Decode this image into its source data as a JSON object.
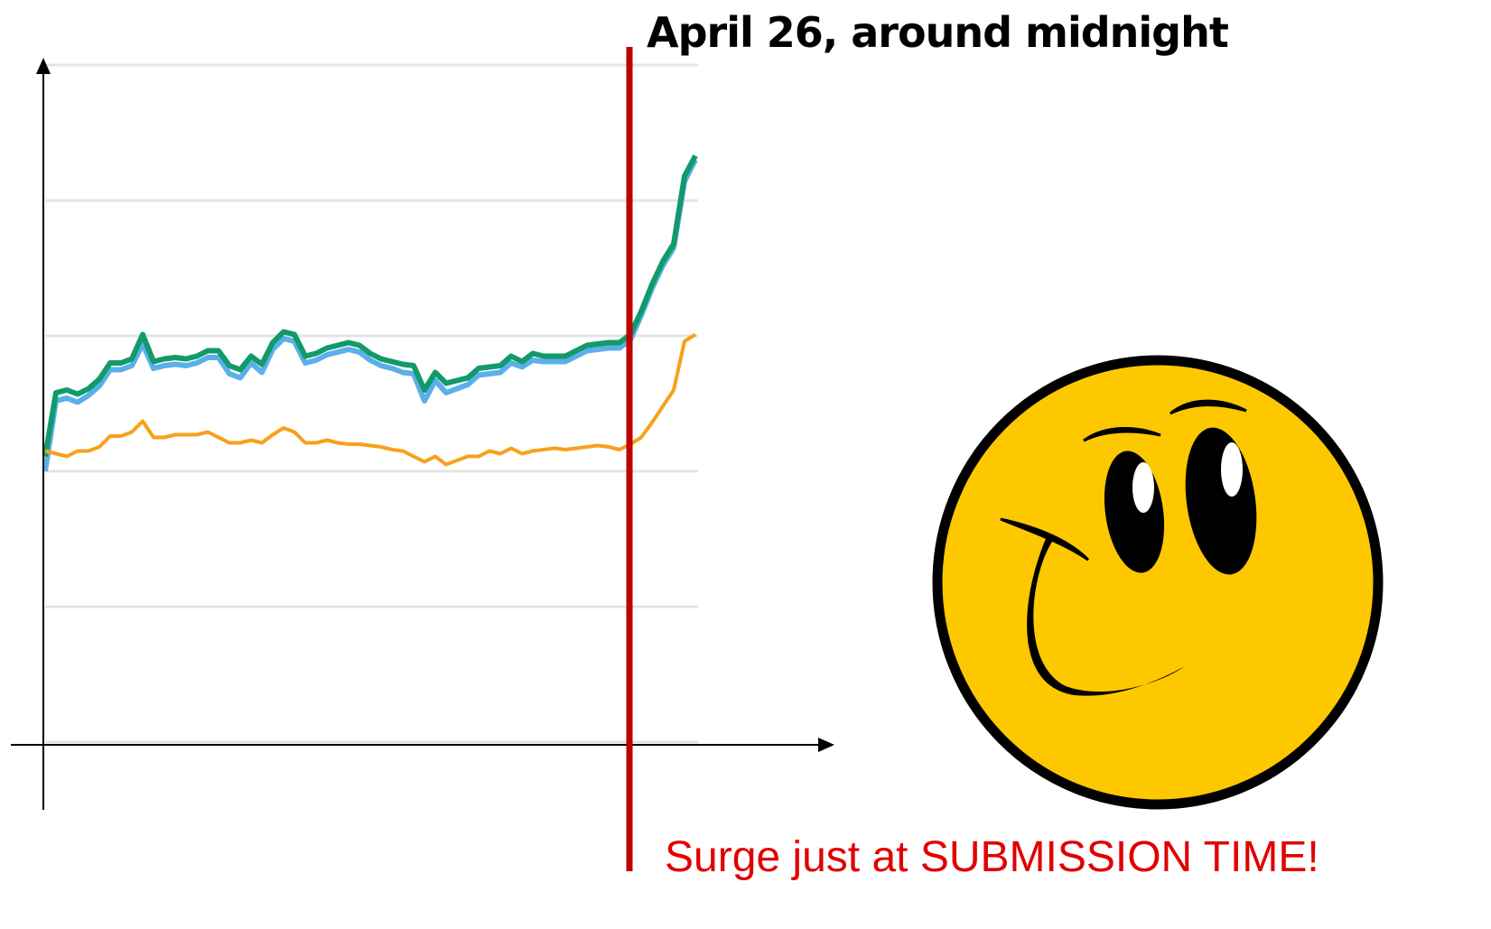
{
  "chart_data": {
    "type": "line",
    "annotations": [
      "April 26, around midnight",
      "Surge just at SUBMISSION TIME!"
    ],
    "categories": [
      null,
      null,
      null,
      null,
      null,
      null,
      null,
      null,
      null,
      null,
      null,
      null,
      null,
      null,
      null,
      null,
      null,
      null,
      null,
      null,
      null,
      null,
      null,
      null,
      null,
      null,
      null,
      null,
      null,
      null,
      null,
      null,
      null,
      null,
      null,
      null,
      null,
      null,
      null,
      null,
      null,
      null,
      null,
      null,
      null,
      null,
      null,
      null,
      null,
      null,
      null,
      null,
      null,
      null,
      null,
      null,
      null,
      null,
      null,
      null,
      null
    ],
    "series": [
      {
        "color": "#5ab0e8",
        "values": [
          2.0,
          2.52,
          2.54,
          2.51,
          2.56,
          2.63,
          2.75,
          2.75,
          2.78,
          2.94,
          2.76,
          2.78,
          2.79,
          2.78,
          2.8,
          2.84,
          2.84,
          2.72,
          2.69,
          2.8,
          2.73,
          2.9,
          2.98,
          2.96,
          2.8,
          2.82,
          2.86,
          2.88,
          2.9,
          2.88,
          2.82,
          2.78,
          2.76,
          2.73,
          2.72,
          2.52,
          2.67,
          2.58,
          2.61,
          2.64,
          2.71,
          2.72,
          2.73,
          2.8,
          2.77,
          2.82,
          2.81,
          2.81,
          2.81,
          2.85,
          2.89,
          2.9,
          2.91,
          2.91,
          2.97,
          3.15,
          3.35,
          3.52,
          3.65,
          4.14,
          4.3
        ]
      },
      {
        "color": "#119a6a",
        "values": [
          2.11,
          2.58,
          2.6,
          2.57,
          2.61,
          2.68,
          2.8,
          2.8,
          2.83,
          3.01,
          2.81,
          2.83,
          2.84,
          2.83,
          2.85,
          2.89,
          2.89,
          2.78,
          2.75,
          2.85,
          2.79,
          2.95,
          3.03,
          3.01,
          2.85,
          2.87,
          2.91,
          2.93,
          2.95,
          2.93,
          2.87,
          2.83,
          2.81,
          2.79,
          2.78,
          2.6,
          2.73,
          2.65,
          2.67,
          2.69,
          2.76,
          2.77,
          2.78,
          2.85,
          2.81,
          2.87,
          2.85,
          2.85,
          2.85,
          2.89,
          2.93,
          2.94,
          2.95,
          2.95,
          3.01,
          3.18,
          3.38,
          3.55,
          3.68,
          4.18,
          4.33
        ]
      },
      {
        "color": "#f7a11a",
        "values": [
          2.15,
          2.13,
          2.11,
          2.15,
          2.15,
          2.18,
          2.26,
          2.26,
          2.29,
          2.37,
          2.25,
          2.25,
          2.27,
          2.27,
          2.27,
          2.29,
          2.25,
          2.21,
          2.21,
          2.23,
          2.21,
          2.27,
          2.32,
          2.29,
          2.21,
          2.21,
          2.23,
          2.21,
          2.2,
          2.2,
          2.19,
          2.18,
          2.16,
          2.15,
          2.11,
          2.07,
          2.11,
          2.05,
          2.08,
          2.11,
          2.11,
          2.15,
          2.13,
          2.17,
          2.13,
          2.15,
          2.16,
          2.17,
          2.16,
          2.17,
          2.18,
          2.19,
          2.18,
          2.16,
          2.2,
          2.25,
          2.36,
          2.48,
          2.6,
          2.96,
          3.01
        ]
      }
    ],
    "ylim": [
      0,
      5
    ],
    "yticks": [
      0,
      1,
      2,
      3,
      4,
      5
    ],
    "grid": true
  }
}
